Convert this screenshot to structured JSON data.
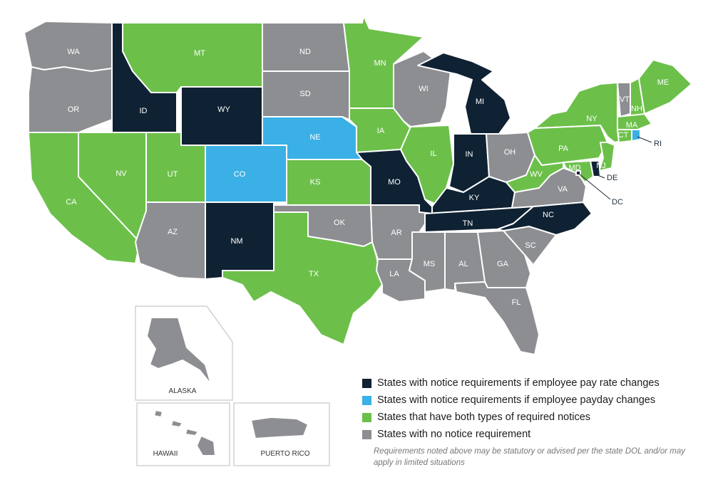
{
  "colors": {
    "rate": "#0f2233",
    "payday": "#3ab0e6",
    "both": "#6cc04a",
    "none": "#8d8e92"
  },
  "states": {
    "WA": {
      "label": "WA",
      "category": "none"
    },
    "OR": {
      "label": "OR",
      "category": "none"
    },
    "CA": {
      "label": "CA",
      "category": "both"
    },
    "ID": {
      "label": "ID",
      "category": "rate"
    },
    "NV": {
      "label": "NV",
      "category": "both"
    },
    "MT": {
      "label": "MT",
      "category": "both"
    },
    "WY": {
      "label": "WY",
      "category": "rate"
    },
    "UT": {
      "label": "UT",
      "category": "both"
    },
    "AZ": {
      "label": "AZ",
      "category": "none"
    },
    "CO": {
      "label": "CO",
      "category": "payday"
    },
    "NM": {
      "label": "NM",
      "category": "rate"
    },
    "ND": {
      "label": "ND",
      "category": "none"
    },
    "SD": {
      "label": "SD",
      "category": "none"
    },
    "NE": {
      "label": "NE",
      "category": "payday"
    },
    "KS": {
      "label": "KS",
      "category": "both"
    },
    "OK": {
      "label": "OK",
      "category": "none"
    },
    "TX": {
      "label": "TX",
      "category": "both"
    },
    "MN": {
      "label": "MN",
      "category": "both"
    },
    "IA": {
      "label": "IA",
      "category": "both"
    },
    "MO": {
      "label": "MO",
      "category": "rate"
    },
    "AR": {
      "label": "AR",
      "category": "none"
    },
    "LA": {
      "label": "LA",
      "category": "none"
    },
    "WI": {
      "label": "WI",
      "category": "none"
    },
    "IL": {
      "label": "IL",
      "category": "both"
    },
    "MI": {
      "label": "MI",
      "category": "rate"
    },
    "IN": {
      "label": "IN",
      "category": "rate"
    },
    "OH": {
      "label": "OH",
      "category": "none"
    },
    "KY": {
      "label": "KY",
      "category": "rate"
    },
    "TN": {
      "label": "TN",
      "category": "rate"
    },
    "MS": {
      "label": "MS",
      "category": "none"
    },
    "AL": {
      "label": "AL",
      "category": "none"
    },
    "GA": {
      "label": "GA",
      "category": "none"
    },
    "FL": {
      "label": "FL",
      "category": "none"
    },
    "SC": {
      "label": "SC",
      "category": "none"
    },
    "NC": {
      "label": "NC",
      "category": "rate"
    },
    "VA": {
      "label": "VA",
      "category": "none"
    },
    "WV": {
      "label": "WV",
      "category": "both"
    },
    "PA": {
      "label": "PA",
      "category": "both"
    },
    "NY": {
      "label": "NY",
      "category": "both"
    },
    "VT": {
      "label": "VT",
      "category": "none"
    },
    "NH": {
      "label": "NH",
      "category": "both"
    },
    "ME": {
      "label": "ME",
      "category": "both"
    },
    "MA": {
      "label": "MA",
      "category": "both"
    },
    "CT": {
      "label": "CT",
      "category": "both"
    },
    "RI": {
      "label": "RI",
      "category": "payday"
    },
    "NJ": {
      "label": "NJ",
      "category": "both"
    },
    "DE": {
      "label": "DE",
      "category": "rate"
    },
    "MD": {
      "label": "MD",
      "category": "both"
    },
    "DC": {
      "label": "DC",
      "category": "rate"
    },
    "AK": {
      "label": "",
      "category": "none"
    },
    "HI": {
      "label": "",
      "category": "none"
    },
    "PR": {
      "label": "",
      "category": "none"
    }
  },
  "insets": {
    "alaska": "ALASKA",
    "hawaii": "HAWAII",
    "puerto_rico": "PUERTO RICO"
  },
  "legend": [
    {
      "category": "rate",
      "text": "States with notice requirements if employee pay rate changes"
    },
    {
      "category": "payday",
      "text": "States with notice requirements if employee payday changes"
    },
    {
      "category": "both",
      "text": "States that have both types of required notices"
    },
    {
      "category": "none",
      "text": "States with no notice requirement"
    }
  ],
  "note": "Requirements noted above may be statutory or advised per the state DOL and/or may apply in limited situations"
}
